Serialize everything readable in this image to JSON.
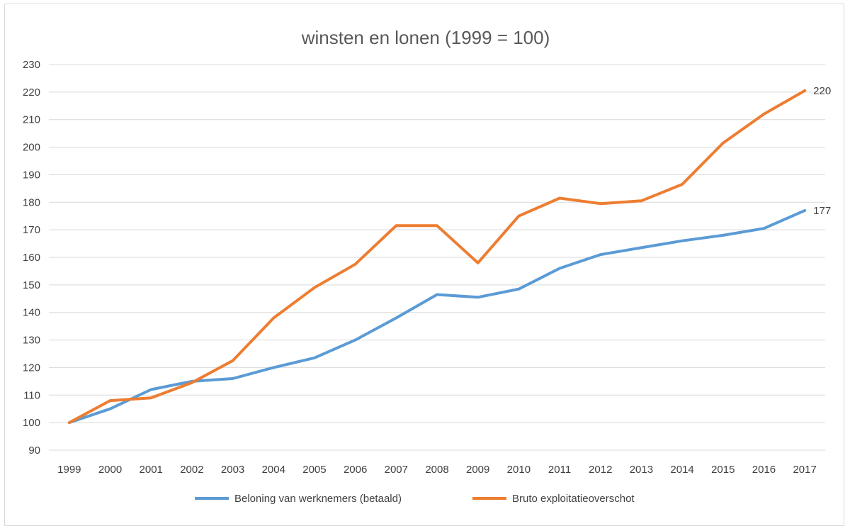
{
  "chart_data": {
    "type": "line",
    "title": "winsten en lonen (1999 = 100)",
    "categories": [
      "1999",
      "2000",
      "2001",
      "2002",
      "2003",
      "2004",
      "2005",
      "2006",
      "2007",
      "2008",
      "2009",
      "2010",
      "2011",
      "2012",
      "2013",
      "2014",
      "2015",
      "2016",
      "2017"
    ],
    "ylim": [
      90,
      230
    ],
    "yticks": [
      90,
      100,
      110,
      120,
      130,
      140,
      150,
      160,
      170,
      180,
      190,
      200,
      210,
      220,
      230
    ],
    "grid": true,
    "legend_position": "bottom",
    "series": [
      {
        "name": "Beloning van werknemers (betaald)",
        "color": "#5b9bd5",
        "values": [
          100,
          105,
          112,
          115,
          116,
          120,
          123.5,
          130,
          138,
          146.5,
          145.5,
          148.5,
          156,
          161,
          163.5,
          166,
          168,
          170.5,
          177
        ],
        "end_label": "177"
      },
      {
        "name": "Bruto exploitatieoverschot",
        "color": "#ed7d31",
        "values": [
          100,
          108,
          109,
          114.5,
          122.5,
          138,
          149,
          157.5,
          171.5,
          171.5,
          158,
          175,
          181.5,
          179.5,
          180.5,
          186.5,
          201.5,
          212,
          220.5
        ],
        "end_label": "220"
      }
    ]
  }
}
